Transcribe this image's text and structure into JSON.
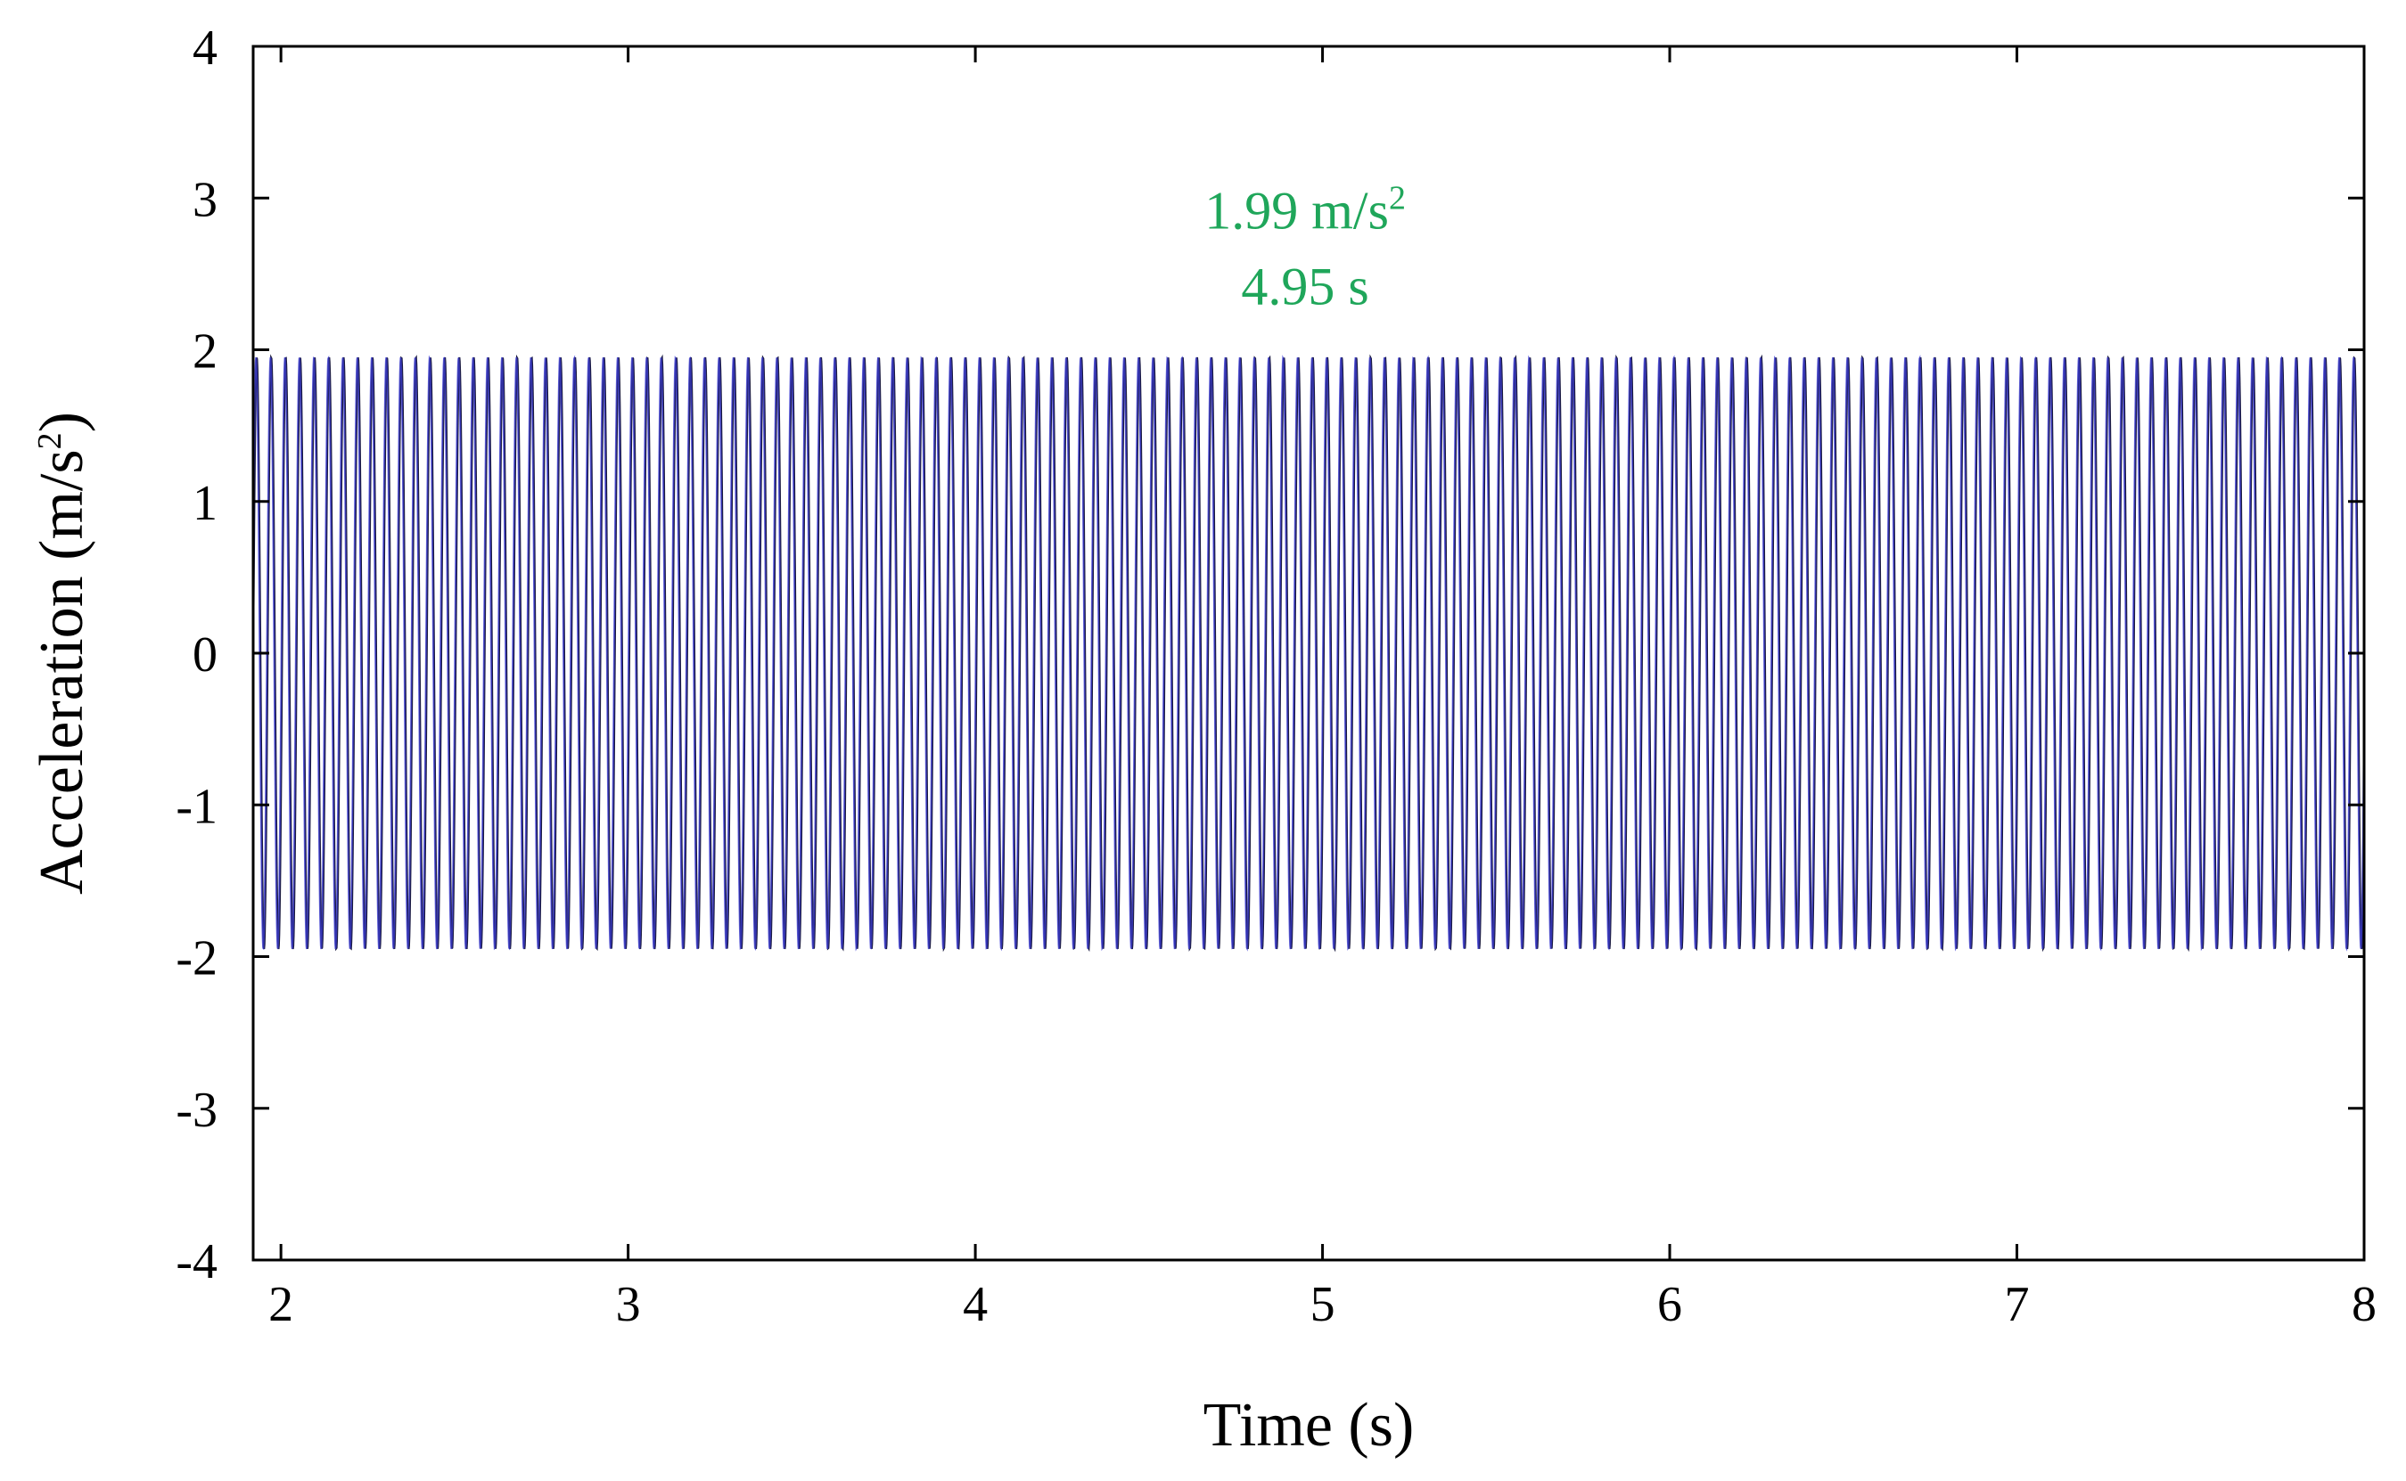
{
  "chart_data": {
    "type": "line",
    "xlabel": "Time (s)",
    "ylabel": {
      "base": "Acceleration (m/s",
      "sup": "2",
      "tail": ")"
    },
    "xlim": [
      1.92,
      8.0
    ],
    "ylim": [
      -4,
      4
    ],
    "xticks": [
      2,
      3,
      4,
      5,
      6,
      7,
      8
    ],
    "xtick_labels": [
      "2",
      "3",
      "4",
      "5",
      "6",
      "7",
      "8"
    ],
    "yticks": [
      4,
      3,
      2,
      1,
      0,
      -1,
      -2,
      -3,
      -4
    ],
    "ytick_labels": [
      "4",
      "3",
      "2",
      "1",
      "0",
      "-1",
      "-2",
      "-3",
      "-4"
    ],
    "grid": false,
    "series": [
      {
        "color": "#1a1a40",
        "signal": {
          "kind": "sinusoid",
          "amplitude": 1.95,
          "frequency_hz": 24.0,
          "t_start": 1.92,
          "t_end": 8.0
        }
      },
      {
        "color": "#3d3dd6",
        "signal": {
          "kind": "sinusoid",
          "amplitude": 1.95,
          "frequency_hz": 24.0,
          "t_start": 1.92,
          "t_end": 8.0
        }
      }
    ],
    "annotations": [
      {
        "text": "1.99 m/s",
        "sup": "2",
        "x": 4.95,
        "y": 2.8,
        "color": "#1fa65a"
      },
      {
        "text": "4.95 s",
        "x": 4.95,
        "y": 2.3,
        "color": "#1fa65a"
      }
    ]
  }
}
